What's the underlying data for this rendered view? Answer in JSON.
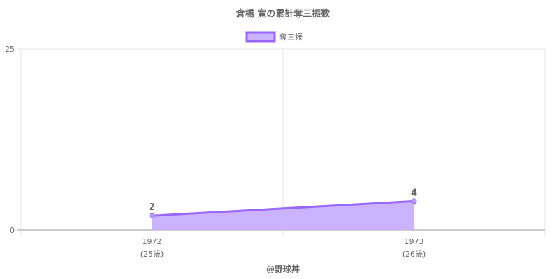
{
  "chart_data": {
    "type": "area",
    "title": "倉橋 寛の累計奪三振数",
    "categories": [
      "1972",
      "1973"
    ],
    "category_sublabels": [
      "(25歳)",
      "(26歳)"
    ],
    "series": [
      {
        "name": "奪三振",
        "values": [
          2,
          4
        ]
      }
    ],
    "data_labels": [
      "2",
      "4"
    ],
    "yticks": [
      "0",
      "25"
    ],
    "ylim": [
      0,
      25
    ],
    "xlabel": "@野球丼",
    "legend": "top",
    "grid": true,
    "colors": {
      "line": "#9966ff",
      "fill": "#ccb3ff",
      "point": "#b899ff"
    }
  }
}
